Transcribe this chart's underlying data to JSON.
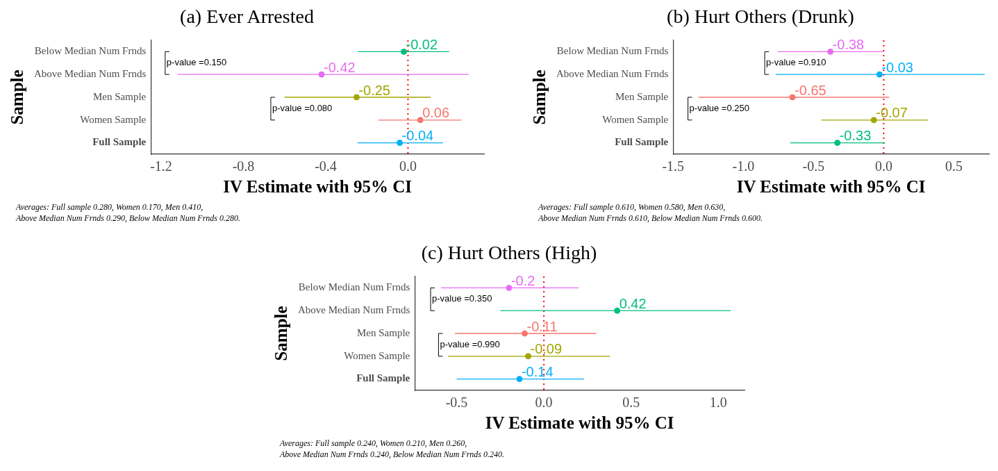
{
  "chart_data": [
    {
      "type": "scatter",
      "orientation": "horizontal",
      "title": "(a) Ever Arrested",
      "xlabel": "IV Estimate with 95% CI",
      "ylabel": "Sample",
      "marker": "circle",
      "data_labels": true,
      "categories": [
        "Below Median Num Frnds",
        "Above Median Num Frnds",
        "Men Sample",
        "Women Sample",
        "Full Sample"
      ],
      "values": [
        -0.02,
        -0.42,
        -0.25,
        0.06,
        -0.04
      ],
      "errors": [
        [
          -0.245,
          0.2
        ],
        [
          -1.12,
          0.295
        ],
        [
          -0.6,
          0.11
        ],
        [
          -0.145,
          0.26
        ],
        [
          -0.245,
          0.17
        ]
      ],
      "colors": [
        "#00bf7d",
        "#e76bf3",
        "#a3a500",
        "#f8766d",
        "#00b0f6"
      ],
      "xlim": [
        -1.25,
        0.37
      ],
      "xticks": [
        -1.2,
        -0.8,
        -0.4,
        {
          "value": 0,
          "label": "0.0"
        }
      ],
      "ref_lines": [
        {
          "axis": "x",
          "value": 0,
          "color": "#ff0000",
          "line_style": "dotted"
        }
      ],
      "annotations": [
        "p-value =0.150",
        "p-value =0.080",
        "Averages: Full sample 0.280, Women 0.170, Men 0.410,",
        "Above Median Num Frnds 0.290, Below Median Num Frnds 0.280."
      ]
    },
    {
      "type": "scatter",
      "orientation": "horizontal",
      "title": "(b) Hurt Others (Drunk)",
      "xlabel": "IV Estimate with 95% CI",
      "ylabel": "Sample",
      "marker": "circle",
      "data_labels": true,
      "categories": [
        "Below Median Num Frnds",
        "Above Median Num Frnds",
        "Men Sample",
        "Women Sample",
        "Full Sample"
      ],
      "values": [
        -0.38,
        -0.03,
        -0.65,
        -0.07,
        -0.33
      ],
      "errors": [
        [
          -0.755,
          0.0
        ],
        [
          -0.77,
          0.72
        ],
        [
          -1.32,
          0.04
        ],
        [
          -0.445,
          0.315
        ],
        [
          -0.665,
          0.01
        ]
      ],
      "colors": [
        "#e76bf3",
        "#00b0f6",
        "#f8766d",
        "#a3a500",
        "#00bf7d"
      ],
      "xlim": [
        -1.5,
        0.75
      ],
      "xticks": [
        -1.5,
        {
          "value": -1,
          "label": "-1.0"
        },
        -0.5,
        {
          "value": 0,
          "label": "0.0"
        },
        0.5
      ],
      "ref_lines": [
        {
          "axis": "x",
          "value": 0,
          "color": "#ff0000",
          "line_style": "dotted"
        }
      ],
      "annotations": [
        "p-value =0.910",
        "p-value =0.250",
        "Averages: Full sample 0.610, Women 0.580, Men 0.630,",
        "Above Median Num Frnds 0.610, Below Median Num Frnds 0.600."
      ]
    },
    {
      "type": "scatter",
      "orientation": "horizontal",
      "title": "(c) Hurt Others (High)",
      "xlabel": "IV Estimate with 95% CI",
      "ylabel": "Sample",
      "marker": "circle",
      "data_labels": true,
      "categories": [
        "Below Median Num Frnds",
        "Above Median Num Frnds",
        "Men Sample",
        "Women Sample",
        "Full Sample"
      ],
      "values": [
        -0.2,
        0.42,
        -0.11,
        -0.09,
        -0.14
      ],
      "errors": [
        [
          -0.59,
          0.2
        ],
        [
          -0.25,
          1.07
        ],
        [
          -0.51,
          0.3
        ],
        [
          -0.55,
          0.38
        ],
        [
          -0.5,
          0.23
        ]
      ],
      "colors": [
        "#e76bf3",
        "#00bf7d",
        "#f8766d",
        "#a3a500",
        "#00b0f6"
      ],
      "xlim": [
        -0.74,
        1.15
      ],
      "xticks": [
        -0.5,
        {
          "value": 0,
          "label": "0.0"
        },
        0.5,
        {
          "value": 1,
          "label": "1.0"
        }
      ],
      "ref_lines": [
        {
          "axis": "x",
          "value": 0,
          "color": "#ff0000",
          "line_style": "dotted"
        }
      ],
      "annotations": [
        "p-value =0.350",
        "p-value =0.990",
        "Averages: Full sample 0.240, Women 0.210, Men 0.260,",
        "Above Median Num Frnds 0.240, Below Median Num Frnds 0.240."
      ]
    }
  ]
}
